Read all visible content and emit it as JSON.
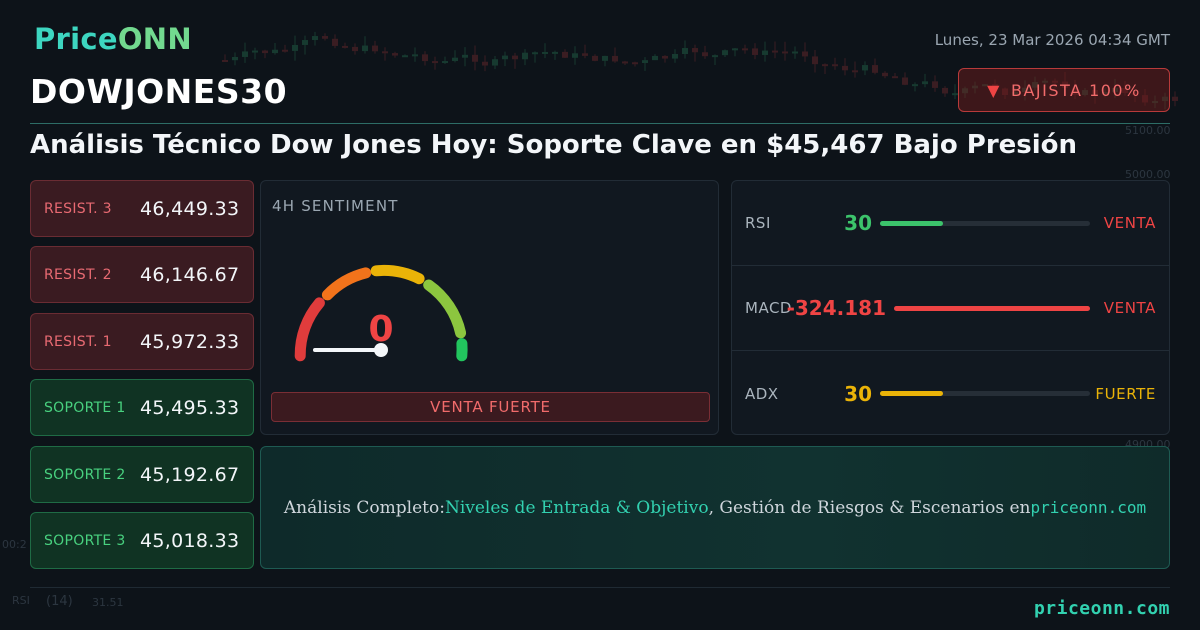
{
  "brand": {
    "part1": "Price",
    "part2": "ONN"
  },
  "datetime": "Lunes, 23 Mar 2026 04:34 GMT",
  "ticker": "DOWJONES30",
  "trend": {
    "arrow": "▼",
    "label": "BAJISTA 100%"
  },
  "headline": "Análisis Técnico Dow Jones Hoy: Soporte Clave en $45,467 Bajo Presión",
  "levels": [
    {
      "type": "resistance",
      "label": "RESIST. 3",
      "value": "46,449.33"
    },
    {
      "type": "resistance",
      "label": "RESIST. 2",
      "value": "46,146.67"
    },
    {
      "type": "resistance",
      "label": "RESIST. 1",
      "value": "45,972.33"
    },
    {
      "type": "support",
      "label": "SOPORTE 1",
      "value": "45,495.33"
    },
    {
      "type": "support",
      "label": "SOPORTE 2",
      "value": "45,192.67"
    },
    {
      "type": "support",
      "label": "SOPORTE 3",
      "value": "45,018.33"
    }
  ],
  "sentiment": {
    "title": "4H SENTIMENT",
    "value": "0",
    "label": "VENTA FUERTE",
    "gauge_fraction": 0
  },
  "indicators": [
    {
      "name": "RSI",
      "value": "30",
      "signal": "VENTA",
      "color": "#3cc36b",
      "signal_color": "#ef4444",
      "fill_fraction": 0.3
    },
    {
      "name": "MACD",
      "value": "-324.181",
      "signal": "VENTA",
      "color": "#ef4444",
      "signal_color": "#ef4444",
      "fill_fraction": 1.0
    },
    {
      "name": "ADX",
      "value": "30",
      "signal": "FUERTE",
      "color": "#eab308",
      "signal_color": "#eab308",
      "fill_fraction": 0.3
    }
  ],
  "promo": {
    "prefix": "Análisis Completo: ",
    "highlight": "Niveles de Entrada & Objetivo",
    "middle": ", Gestión de Riesgos & Escenarios en ",
    "site": "priceonn.com"
  },
  "background": {
    "price_labels": [
      "5100.00",
      "5000.00",
      "4900.00"
    ],
    "rsi_label": "RSI",
    "rsi_period": "(14)",
    "rsi_value": "31.51",
    "time_label": "00:2"
  },
  "footer_site": "priceonn.com",
  "colors": {
    "brand_teal": "#3dd6c0",
    "brand_green": "#72d98f",
    "bearish": "#ef4444",
    "bullish": "#48d17f",
    "neutral": "#eab308"
  }
}
